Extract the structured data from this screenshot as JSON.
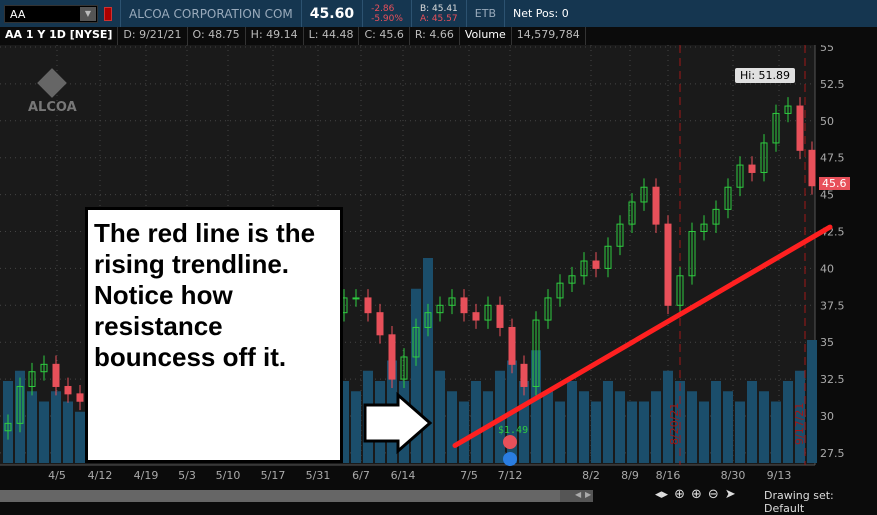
{
  "header": {
    "symbol": "AA",
    "company": "ALCOA CORPORATION COM",
    "last": "45.60",
    "change": "-2.86",
    "change_pct": "-5.90%",
    "bid": "B: 45.41",
    "ask": "A: 45.57",
    "etb": "ETB",
    "net_pos": "Net Pos: 0"
  },
  "info": {
    "title": "AA 1 Y 1D [NYSE]",
    "date": "D: 9/21/21",
    "open": "O: 48.75",
    "high": "H: 49.14",
    "low": "L: 44.48",
    "close": "C: 45.6",
    "range": "R: 4.66",
    "volume_label": "Volume",
    "volume": "14,579,784"
  },
  "logo": "ALCOA",
  "callout": "The red line is the rising trendline. Notice how resistance bouncess off it.",
  "hi_label": "Hi: 51.89",
  "price_tag": "45.6",
  "earnings_label": "$1.49",
  "event_markers": [
    "8/20/21",
    "9/17/21"
  ],
  "drawing_set": "Drawing set: Default",
  "colors": {
    "up": "#2ecc40",
    "down": "#e8505a",
    "volume": "#1b4e6b",
    "trendline": "#ff2020",
    "header": "#153650"
  },
  "chart_data": {
    "type": "candlestick",
    "y_ticks": [
      "55",
      "52.5",
      "50",
      "47.5",
      "45",
      "42.5",
      "40",
      "37.5",
      "35",
      "32.5",
      "30",
      "27.5"
    ],
    "ylim": [
      26.5,
      55.5
    ],
    "x_ticks": [
      "4/5",
      "4/12",
      "4/19",
      "5/3",
      "5/10",
      "5/17",
      "5/31",
      "6/7",
      "6/14",
      "7/5",
      "7/12",
      "8/2",
      "8/9",
      "8/16",
      "8/30",
      "9/13"
    ],
    "closes": [
      29.5,
      32,
      33,
      33.5,
      32,
      31.5,
      31,
      32,
      33,
      34,
      35,
      34,
      36,
      37,
      36,
      35,
      37,
      38,
      37,
      36,
      38,
      39,
      38,
      37,
      38,
      39,
      38,
      37,
      38,
      38,
      37,
      35.5,
      32.5,
      34,
      36,
      37,
      37.5,
      38,
      37,
      36.5,
      37.5,
      36,
      33.5,
      32,
      36.5,
      38,
      39,
      39.5,
      40.5,
      40,
      41.5,
      43,
      44.5,
      45.5,
      43,
      37.5,
      39.5,
      42.5,
      43,
      44,
      45.5,
      47,
      46.5,
      48.5,
      50.5,
      51,
      48,
      45.6
    ],
    "volume_millions": [
      8,
      9,
      7,
      6,
      7,
      6,
      5,
      7,
      6,
      7,
      8,
      6,
      7,
      9,
      8,
      6,
      7,
      8,
      7,
      6,
      8,
      9,
      7,
      6,
      8,
      7,
      6,
      7,
      8,
      7,
      9,
      8,
      10,
      8,
      17,
      20,
      9,
      7,
      6,
      8,
      7,
      9,
      10,
      8,
      11,
      7,
      6,
      8,
      7,
      6,
      8,
      7,
      6,
      6,
      7,
      9,
      8,
      7,
      6,
      8,
      7,
      6,
      8,
      7,
      6,
      8,
      9,
      12
    ],
    "trendline": {
      "from": 28.0,
      "to": 42.8
    }
  }
}
